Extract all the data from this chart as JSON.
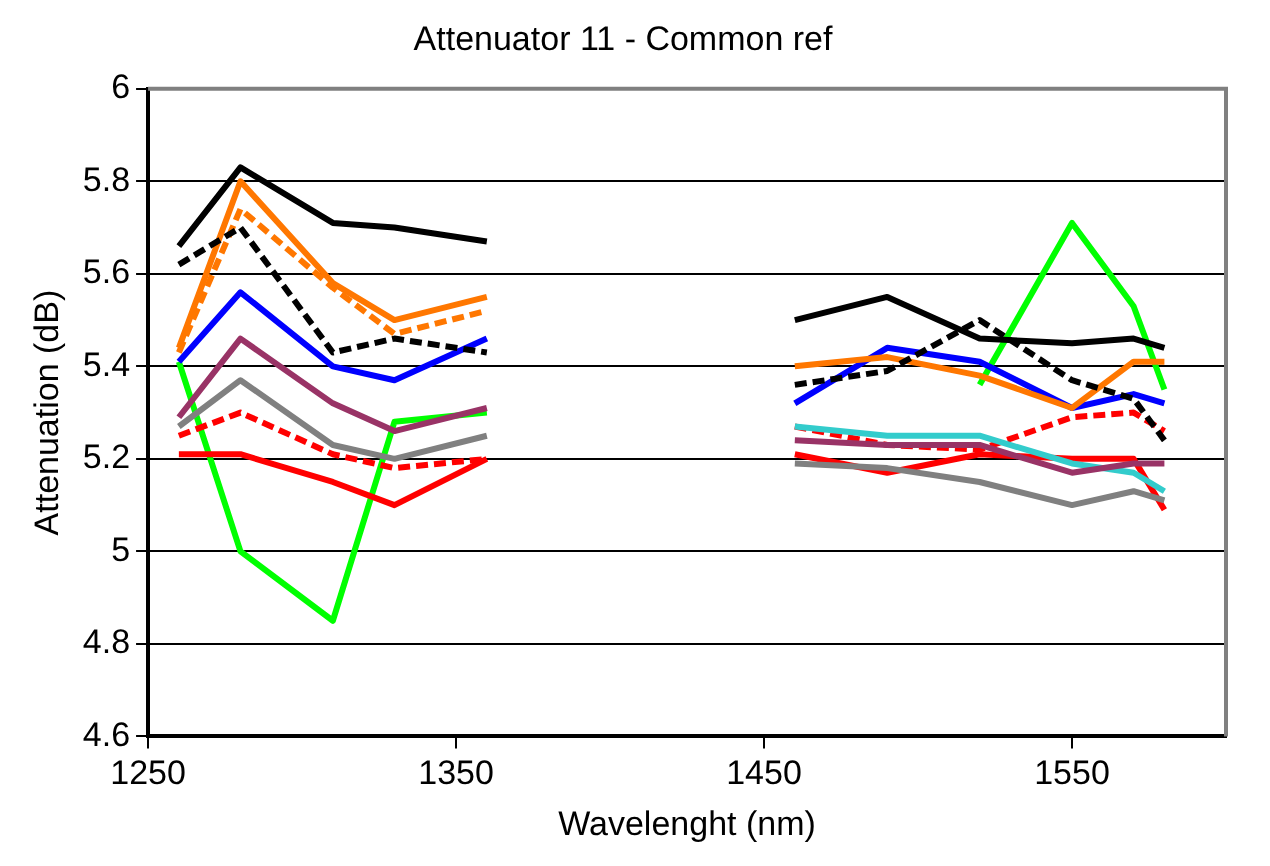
{
  "chart_data": {
    "type": "line",
    "title": "Attenuator 11 - Common ref",
    "xlabel": "Wavelenght (nm)",
    "ylabel": "Attenuation (dB)",
    "x": [
      1260,
      1280,
      1310,
      1330,
      1360,
      1410,
      1460,
      1490,
      1520,
      1550,
      1570,
      1580
    ],
    "xlim": [
      1250,
      1600
    ],
    "xticks": [
      1250,
      1350,
      1450,
      1550
    ],
    "ylim": [
      4.6,
      6
    ],
    "yticks": [
      4.6,
      4.8,
      5,
      5.2,
      5.4,
      5.6,
      5.8,
      6
    ],
    "grid": "y",
    "legend": false,
    "marker": "none",
    "line_style": "solid",
    "series": [
      {
        "color": "#000000",
        "values": [
          5.66,
          5.83,
          5.71,
          5.7,
          5.67,
          null,
          5.5,
          5.55,
          5.46,
          5.45,
          5.46,
          5.44
        ]
      },
      {
        "color": "#000000",
        "line_style": "dashed",
        "values": [
          5.62,
          5.7,
          5.43,
          5.46,
          5.43,
          null,
          5.36,
          5.39,
          5.5,
          5.37,
          5.33,
          5.24
        ]
      },
      {
        "color": "#ff7700",
        "line_style": "dashed",
        "values": [
          5.43,
          5.74,
          5.57,
          5.47,
          5.52,
          null,
          null,
          null,
          null,
          null,
          null,
          null
        ]
      },
      {
        "color": "#ff7700",
        "values": [
          5.44,
          5.8,
          5.58,
          5.5,
          5.55,
          null,
          5.4,
          5.42,
          5.38,
          5.31,
          5.41,
          5.41
        ]
      },
      {
        "color": "#0000ff",
        "values": [
          5.41,
          5.56,
          5.4,
          5.37,
          5.46,
          null,
          5.32,
          5.44,
          5.41,
          5.31,
          5.34,
          5.32
        ]
      },
      {
        "color": "#993366",
        "values": [
          5.29,
          5.46,
          5.32,
          5.26,
          5.31,
          null,
          5.24,
          5.23,
          5.23,
          5.17,
          5.19,
          5.19
        ]
      },
      {
        "color": "#33cccc",
        "values": [
          null,
          null,
          null,
          null,
          null,
          null,
          5.27,
          5.25,
          5.25,
          5.19,
          5.17,
          5.13
        ]
      },
      {
        "color": "#808080",
        "values": [
          5.27,
          5.37,
          5.23,
          5.2,
          5.25,
          null,
          5.19,
          5.18,
          5.15,
          5.1,
          5.13,
          5.11
        ]
      },
      {
        "color": "#ff0000",
        "line_style": "dashed",
        "values": [
          5.25,
          5.3,
          5.21,
          5.18,
          5.2,
          null,
          5.27,
          5.23,
          5.22,
          5.29,
          5.3,
          5.26
        ]
      },
      {
        "color": "#ff0000",
        "values": [
          5.21,
          5.21,
          5.15,
          5.1,
          5.2,
          null,
          5.21,
          5.17,
          5.21,
          5.2,
          5.2,
          5.09
        ]
      },
      {
        "color": "#00ff00",
        "values": [
          5.41,
          5,
          4.85,
          5.28,
          5.3,
          null,
          null,
          null,
          5.36,
          5.71,
          5.53,
          5.35
        ]
      }
    ]
  }
}
